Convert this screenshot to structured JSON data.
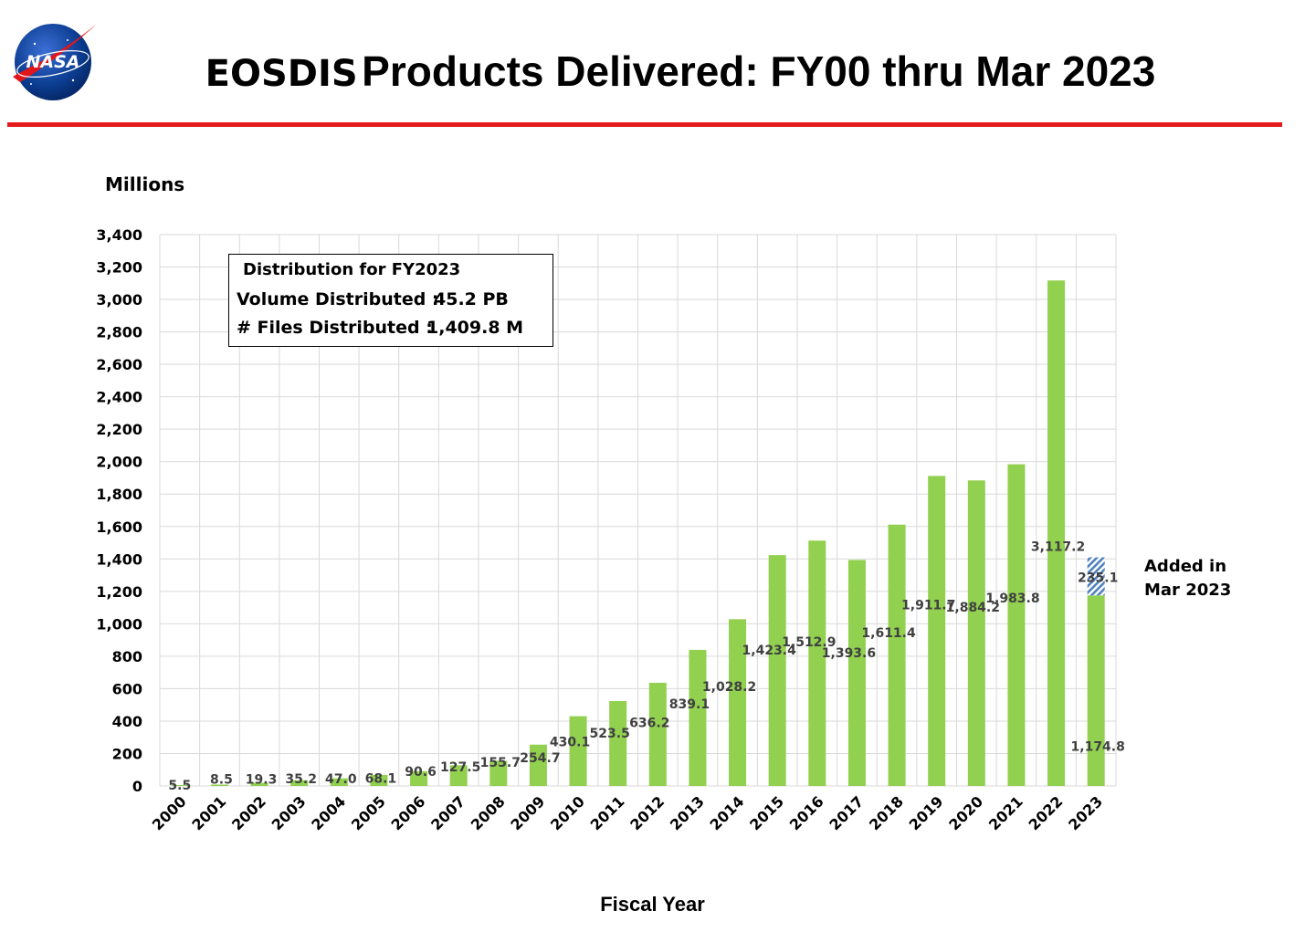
{
  "header": {
    "title_part1": "EOSDIS",
    "title_part2": "Products Delivered: FY00 thru Mar 2023",
    "logo_text": "NASA"
  },
  "colors": {
    "bar": "#92d050",
    "added_hatch": "#4f81bd",
    "rule": "#e31b1b",
    "grid": "#d9d9d9"
  },
  "info_box": {
    "heading": "Distribution for FY2023",
    "volume_label": "Volume Distributed :",
    "volume_value": "45.2 PB",
    "files_label": "# Files Distributed :",
    "files_value": "1,409.8 M"
  },
  "side_note": {
    "line1": "Added in",
    "line2": "Mar 2023"
  },
  "chart_data": {
    "type": "bar",
    "stacked": true,
    "ylabel": "Millions",
    "xlabel": "Fiscal Year",
    "ylim": [
      0,
      3400
    ],
    "ytick_step": 200,
    "grid": true,
    "categories": [
      "2000",
      "2001",
      "2002",
      "2003",
      "2004",
      "2005",
      "2006",
      "2007",
      "2008",
      "2009",
      "2010",
      "2011",
      "2012",
      "2013",
      "2014",
      "2015",
      "2016",
      "2017",
      "2018",
      "2019",
      "2020",
      "2021",
      "2022",
      "2023"
    ],
    "series": [
      {
        "values": [
          5.5,
          8.5,
          19.3,
          35.2,
          47.0,
          68.1,
          90.6,
          127.5,
          155.7,
          254.7,
          430.1,
          523.5,
          636.2,
          839.1,
          1028.2,
          1423.4,
          1512.9,
          1393.6,
          1611.4,
          1911.7,
          1884.2,
          1983.8,
          3117.2,
          1174.8
        ],
        "labels": [
          "5.5",
          "8.5",
          "19.3",
          "35.2",
          "47.0",
          "68.1",
          "90.6",
          "127.5",
          "155.7",
          "254.7",
          "430.1",
          "523.5",
          "636.2",
          "839.1",
          "1,028.2",
          "1,423.4",
          "1,512.9",
          "1,393.6",
          "1,611.4",
          "1,911.7",
          "1,884.2",
          "1,983.8",
          "3,117.2",
          "1,174.8"
        ]
      },
      {
        "name": "Added in Mar 2023",
        "values": [
          0,
          0,
          0,
          0,
          0,
          0,
          0,
          0,
          0,
          0,
          0,
          0,
          0,
          0,
          0,
          0,
          0,
          0,
          0,
          0,
          0,
          0,
          0,
          235.1
        ],
        "labels": [
          "",
          "",
          "",
          "",
          "",
          "",
          "",
          "",
          "",
          "",
          "",
          "",
          "",
          "",
          "",
          "",
          "",
          "",
          "",
          "",
          "",
          "",
          "",
          "235.1"
        ]
      }
    ]
  }
}
